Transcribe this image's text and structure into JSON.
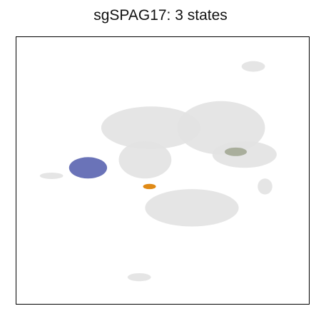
{
  "chart_data": {
    "type": "scatter",
    "title": "sgSPAG17: 3 states",
    "xlabel": "",
    "ylabel": "",
    "xlim": [
      0,
      100
    ],
    "ylim": [
      0,
      100
    ],
    "grid": false,
    "legend": "none",
    "background_color": "#e2e2e2",
    "background_clusters": [
      {
        "name": "",
        "center": [
          46,
          66
        ],
        "radii": [
          17,
          8
        ]
      },
      {
        "name": "",
        "center": [
          70,
          66
        ],
        "radii": [
          15,
          10
        ]
      },
      {
        "name": "",
        "center": [
          78,
          56
        ],
        "radii": [
          11,
          5
        ]
      },
      {
        "name": "",
        "center": [
          44,
          54
        ],
        "radii": [
          9,
          7
        ]
      },
      {
        "name": "",
        "center": [
          60,
          36
        ],
        "radii": [
          16,
          7
        ]
      },
      {
        "name": "",
        "center": [
          12,
          48
        ],
        "radii": [
          4,
          1.2
        ]
      },
      {
        "name": "",
        "center": [
          81,
          89
        ],
        "radii": [
          4,
          2
        ]
      },
      {
        "name": "",
        "center": [
          85,
          44
        ],
        "radii": [
          2.5,
          3
        ]
      },
      {
        "name": "",
        "center": [
          42,
          10
        ],
        "radii": [
          4,
          1.5
        ]
      }
    ],
    "series": [
      {
        "name": "",
        "color": "#6a73b8",
        "center": [
          24.5,
          51
        ],
        "radii": [
          6.5,
          4
        ]
      },
      {
        "name": "",
        "color": "#e08a16",
        "center": [
          45.5,
          44
        ],
        "radii": [
          2.2,
          1
        ]
      },
      {
        "name": "",
        "color": "#a9ae9c",
        "center": [
          75,
          57
        ],
        "radii": [
          3.8,
          1.6
        ]
      }
    ]
  }
}
